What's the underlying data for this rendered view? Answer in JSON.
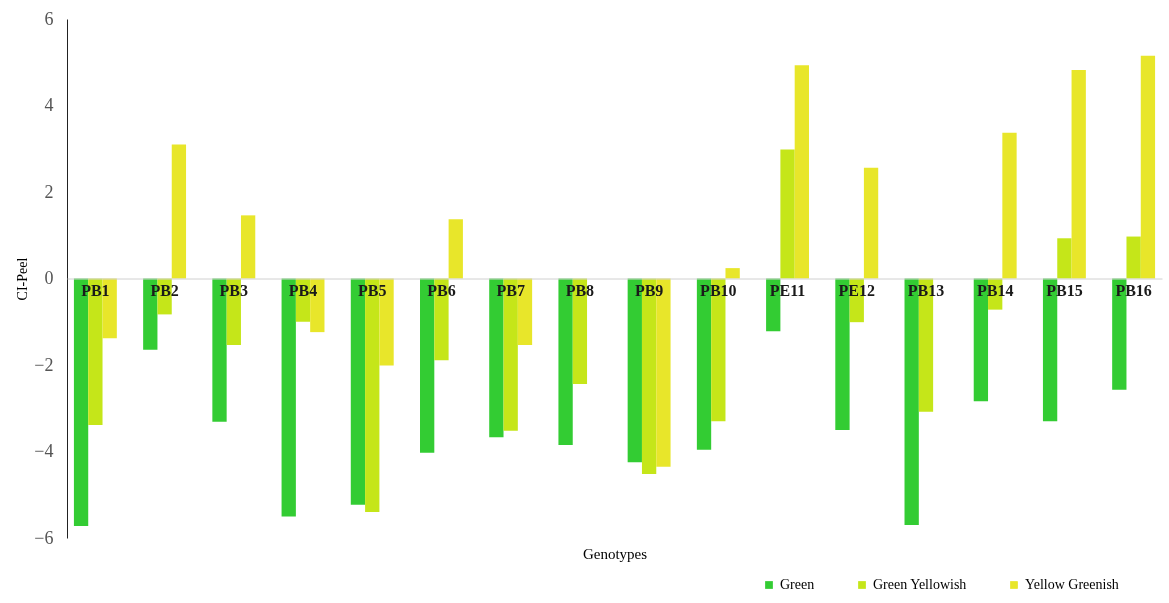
{
  "chart_data": {
    "type": "bar",
    "xlabel": "Genotypes",
    "ylabel": "CI-Peel",
    "categories": [
      "PB1",
      "PB2",
      "PB3",
      "PB4",
      "PB5",
      "PB6",
      "PB7",
      "PB8",
      "PB9",
      "PB10",
      "PE11",
      "PE12",
      "PB13",
      "PB14",
      "PB15",
      "PB16"
    ],
    "series": [
      {
        "name": "Green",
        "color": "#33cc33",
        "values": [
          -5.72,
          -1.65,
          -3.31,
          -5.5,
          -5.23,
          -4.03,
          -3.67,
          -3.85,
          -4.25,
          -3.96,
          -1.22,
          -3.5,
          -5.7,
          -2.84,
          -3.3,
          -2.57
        ]
      },
      {
        "name": "Green Yellowish",
        "color": "#c5e619",
        "values": [
          -3.39,
          -0.83,
          -1.54,
          -1.0,
          -5.4,
          -1.89,
          -3.52,
          -2.44,
          -4.52,
          -3.3,
          2.98,
          -1.01,
          -3.08,
          -0.72,
          0.93,
          0.97
        ]
      },
      {
        "name": "Yellow Greenish",
        "color": "#e8e62a",
        "values": [
          -1.38,
          3.1,
          1.46,
          -1.24,
          -2.01,
          1.37,
          -1.54,
          null,
          -4.35,
          0.24,
          4.93,
          2.56,
          null,
          3.37,
          4.82,
          5.15
        ]
      }
    ],
    "ylim": [
      -6,
      6
    ],
    "yticks": [
      -6,
      -4,
      -2,
      0,
      2,
      4,
      6
    ],
    "grid": false,
    "legend": "bottom right"
  }
}
